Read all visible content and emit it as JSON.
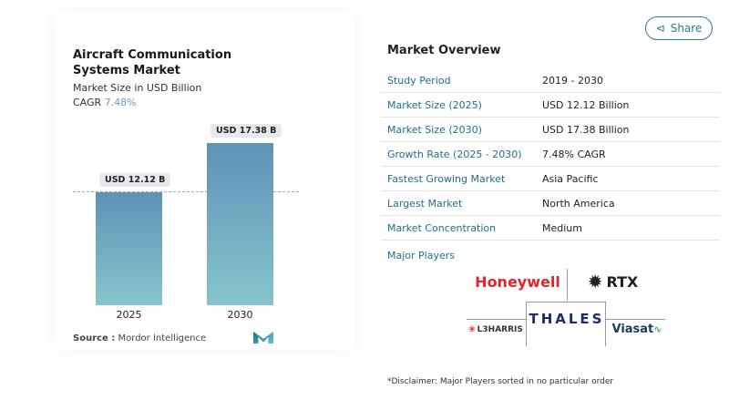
{
  "chart": {
    "title": "Aircraft Communication Systems Market",
    "subtitle": "Market Size in USD Billion",
    "cagr_label": "CAGR",
    "cagr_value": "7.48%",
    "source_label": "Source :",
    "source": "Mordor Intelligence"
  },
  "chart_data": {
    "type": "bar",
    "categories": [
      "2025",
      "2030"
    ],
    "values": [
      12.12,
      17.38
    ],
    "data_labels": [
      "USD 12.12 B",
      "USD 17.38 B"
    ],
    "unit": "USD Billion",
    "colors": [
      "#5f92b8",
      "#86c5cc"
    ]
  },
  "share_label": "Share",
  "overview": {
    "title": "Market Overview",
    "rows": [
      {
        "k": "Study Period",
        "v": "2019 - 2030"
      },
      {
        "k": "Market Size (2025)",
        "v": "USD 12.12 Billion"
      },
      {
        "k": "Market Size (2030)",
        "v": "USD 17.38 Billion"
      },
      {
        "k": "Growth Rate (2025 - 2030)",
        "v": "7.48% CAGR"
      },
      {
        "k": "Fastest Growing Market",
        "v": "Asia Pacific"
      },
      {
        "k": "Largest Market",
        "v": "North America"
      },
      {
        "k": "Market Concentration",
        "v": "Medium"
      }
    ]
  },
  "players": {
    "title": "Major Players",
    "logos": [
      "Honeywell",
      "RTX",
      "L3HARRIS",
      "THALES",
      "Viasat"
    ]
  },
  "disclaimer": "*Disclaimer: Major Players sorted in no particular order"
}
